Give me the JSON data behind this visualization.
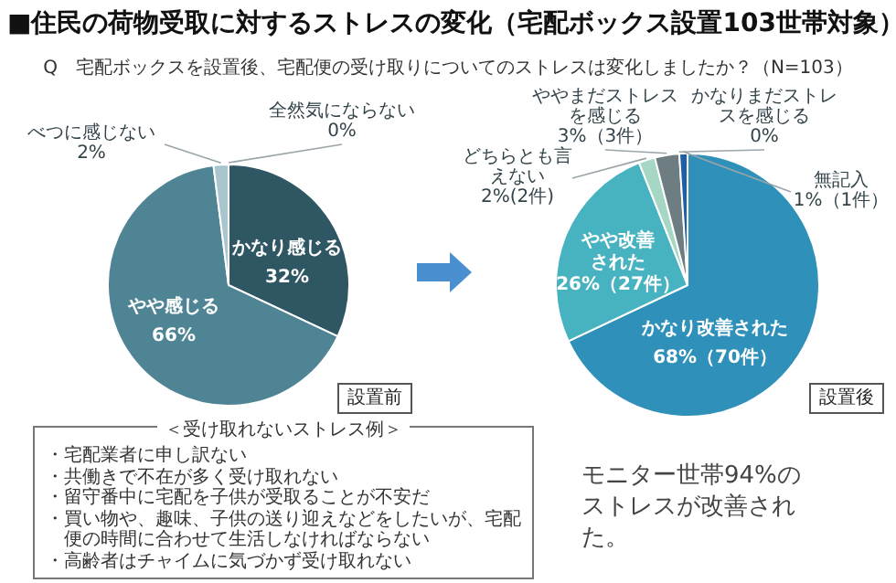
{
  "chart_data": [
    {
      "type": "pie",
      "title": "■住民の荷物受取に対するストレスの変化（宅配ボックス設置103世帯対象）",
      "subtitle": "Q　宅配ボックスを設置後、宅配便の受け取りについてのストレスは変化しましたか？（N=103）",
      "categories": [
        "かなり感じる",
        "やや感じる",
        "べつに感じない",
        "全然気にならない"
      ],
      "values": [
        32,
        66,
        2,
        0
      ],
      "value_labels": [
        "32%",
        "66%",
        "2%",
        "0%"
      ],
      "colors": [
        "#2f5663",
        "#4f8495",
        "#a9c6cf",
        "#cbdadf"
      ],
      "annotations": [
        "設置前",
        "＜受け取れないストレス例＞",
        "・宅配業者に申し訳ない",
        "・共働きで不在が多く受け取れない",
        "・留守番中に宅配を子供が受取ることが不安だ",
        "・買い物や、趣味、子供の送り迎えなどをしたいが、宅配便の時間に合わせて生活しなければならない",
        "・高齢者はチャイムに気づかず受け取れない"
      ]
    },
    {
      "type": "pie",
      "categories": [
        "かなり改善された",
        "やや改善された",
        "どちらとも言えない",
        "ややまだストレスを感じる",
        "かなりまだストレスを感じる",
        "無記入"
      ],
      "values": [
        68,
        26,
        2,
        3,
        0,
        1
      ],
      "value_labels": [
        "68%（70件）",
        "26%（27件）",
        "2%(2件)",
        "3%（3件）",
        "0%",
        "1%（1件）"
      ],
      "colors": [
        "#2f91b9",
        "#47b2c0",
        "#a6d7c4",
        "#6d7d82",
        "#3a3a3a",
        "#1f5fa8"
      ],
      "annotations": [
        "設置後",
        "モニター世帯94%のストレスが改善された。"
      ]
    }
  ]
}
